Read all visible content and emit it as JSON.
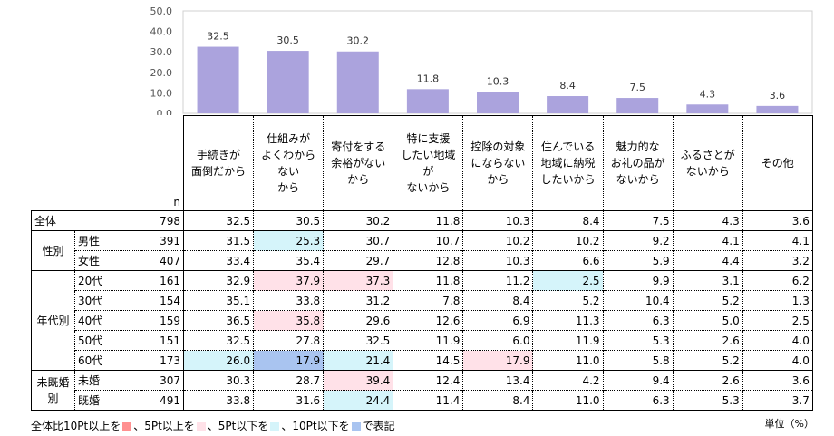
{
  "chart_data": {
    "type": "bar",
    "ylim": [
      0,
      50
    ],
    "yticks": [
      "0.0",
      "10.0",
      "20.0",
      "30.0",
      "40.0",
      "50.0"
    ],
    "categories": [
      "手続きが\n面倒だから",
      "仕組みが\nよくわからない\nから",
      "寄付をする\n余裕がない\nから",
      "特に支援\nしたい地域が\nないから",
      "控除の対象\nにならない\nから",
      "住んでいる\n地域に納税\nしたいから",
      "魅力的な\nお礼の品が\nないから",
      "ふるさとが\nないから",
      "その他"
    ],
    "values": [
      32.5,
      30.5,
      30.2,
      11.8,
      10.3,
      8.4,
      7.5,
      4.3,
      3.6
    ],
    "bar_color": "#aba3dd"
  },
  "table": {
    "n_label": "n",
    "rows": [
      {
        "group": "全体",
        "label": "",
        "n": "798",
        "values": [
          "32.5",
          "30.5",
          "30.2",
          "11.8",
          "10.3",
          "8.4",
          "7.5",
          "4.3",
          "3.6"
        ],
        "marks": [
          "",
          "",
          "",
          "",
          "",
          "",
          "",
          "",
          ""
        ]
      },
      {
        "group": "性別",
        "label": "男性",
        "n": "391",
        "values": [
          "31.5",
          "25.3",
          "30.7",
          "10.7",
          "10.2",
          "10.2",
          "9.2",
          "4.1",
          "4.1"
        ],
        "marks": [
          "",
          "m5",
          "",
          "",
          "",
          "",
          "",
          "",
          ""
        ]
      },
      {
        "group": "",
        "label": "女性",
        "n": "407",
        "values": [
          "33.4",
          "35.4",
          "29.7",
          "12.8",
          "10.3",
          "6.6",
          "5.9",
          "4.4",
          "3.2"
        ],
        "marks": [
          "",
          "",
          "",
          "",
          "",
          "",
          "",
          "",
          ""
        ]
      },
      {
        "group": "年代別",
        "label": "20代",
        "n": "161",
        "values": [
          "32.9",
          "37.9",
          "37.3",
          "11.8",
          "11.2",
          "2.5",
          "9.9",
          "3.1",
          "6.2"
        ],
        "marks": [
          "",
          "p5",
          "p5",
          "",
          "",
          "m5",
          "",
          "",
          ""
        ]
      },
      {
        "group": "",
        "label": "30代",
        "n": "154",
        "values": [
          "35.1",
          "33.8",
          "31.2",
          "7.8",
          "8.4",
          "5.2",
          "10.4",
          "5.2",
          "1.3"
        ],
        "marks": [
          "",
          "",
          "",
          "",
          "",
          "",
          "",
          "",
          ""
        ]
      },
      {
        "group": "",
        "label": "40代",
        "n": "159",
        "values": [
          "36.5",
          "35.8",
          "29.6",
          "12.6",
          "6.9",
          "11.3",
          "6.3",
          "5.0",
          "2.5"
        ],
        "marks": [
          "",
          "p5",
          "",
          "",
          "",
          "",
          "",
          "",
          ""
        ]
      },
      {
        "group": "",
        "label": "50代",
        "n": "151",
        "values": [
          "32.5",
          "27.8",
          "32.5",
          "11.9",
          "6.0",
          "11.9",
          "5.3",
          "2.6",
          "4.0"
        ],
        "marks": [
          "",
          "",
          "",
          "",
          "",
          "",
          "",
          "",
          ""
        ]
      },
      {
        "group": "",
        "label": "60代",
        "n": "173",
        "values": [
          "26.0",
          "17.9",
          "21.4",
          "14.5",
          "17.9",
          "11.0",
          "5.8",
          "5.2",
          "4.0"
        ],
        "marks": [
          "m5",
          "m10",
          "m5",
          "",
          "p5",
          "",
          "",
          "",
          ""
        ]
      },
      {
        "group": "未既婚別",
        "label": "未婚",
        "n": "307",
        "values": [
          "30.3",
          "28.7",
          "39.4",
          "12.4",
          "13.4",
          "4.2",
          "9.4",
          "2.6",
          "3.6"
        ],
        "marks": [
          "",
          "",
          "p5",
          "",
          "",
          "",
          "",
          "",
          ""
        ]
      },
      {
        "group": "",
        "label": "既婚",
        "n": "491",
        "values": [
          "33.8",
          "31.6",
          "24.4",
          "11.4",
          "8.4",
          "11.0",
          "6.3",
          "5.3",
          "3.7"
        ],
        "marks": [
          "",
          "",
          "m5",
          "",
          "",
          "",
          "",
          "",
          ""
        ]
      }
    ]
  },
  "legend": {
    "text1": "全体比10Pt以上を",
    "text2": "、5Pt以上を",
    "text3": "、5Pt以下を",
    "text4": "、10Pt以下を",
    "text5": "で表記",
    "colors": [
      "#ff9090",
      "#ffe1e8",
      "#d5f4fa",
      "#a9c4f0"
    ]
  },
  "unit": "単位（%）"
}
